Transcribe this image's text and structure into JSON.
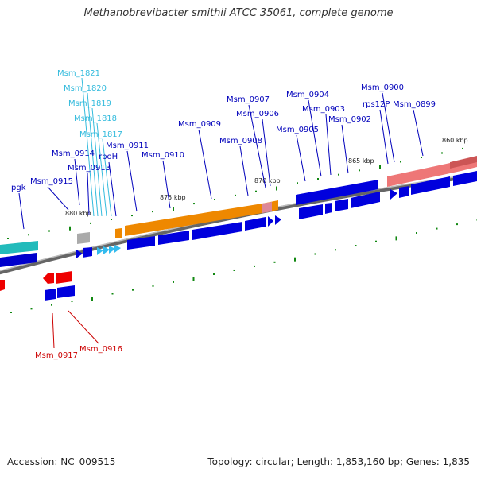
{
  "title": "Methanobrevibacter smithii ATCC 35061, complete genome",
  "accession": "Accession: NC_009515",
  "topology": "Topology: circular; Length: 1,853,160 bp; Genes: 1,835",
  "colors": {
    "cds": "#0000dd",
    "rna_cyan": "#33ccee",
    "orange": "#ee8800",
    "pink": "#ee7777",
    "red": "#ee0000",
    "teal": "#22bbbb",
    "gray": "#aaaaaa",
    "backbone": "#777777",
    "tick": "#118811"
  },
  "scale_labels": [
    "880 kbp",
    "875 kbp",
    "870 kbp",
    "865 kbp",
    "860 kbp"
  ],
  "gene_labels": [
    {
      "text": "Msm_1821",
      "color": "cyan"
    },
    {
      "text": "Msm_1820",
      "color": "cyan"
    },
    {
      "text": "Msm_1819",
      "color": "cyan"
    },
    {
      "text": "Msm_1818",
      "color": "cyan"
    },
    {
      "text": "Msm_1817",
      "color": "cyan"
    },
    {
      "text": "Msm_0911",
      "color": "blue"
    },
    {
      "text": "Msm_0914",
      "color": "blue"
    },
    {
      "text": "rpoH",
      "color": "blue"
    },
    {
      "text": "Msm_0913",
      "color": "blue"
    },
    {
      "text": "Msm_0915",
      "color": "blue"
    },
    {
      "text": "pgk",
      "color": "blue"
    },
    {
      "text": "Msm_0910",
      "color": "blue"
    },
    {
      "text": "Msm_0909",
      "color": "blue"
    },
    {
      "text": "Msm_0908",
      "color": "blue"
    },
    {
      "text": "Msm_0907",
      "color": "blue"
    },
    {
      "text": "Msm_0906",
      "color": "blue"
    },
    {
      "text": "Msm_0905",
      "color": "blue"
    },
    {
      "text": "Msm_0904",
      "color": "blue"
    },
    {
      "text": "Msm_0903",
      "color": "blue"
    },
    {
      "text": "Msm_0902",
      "color": "blue"
    },
    {
      "text": "Msm_0900",
      "color": "blue"
    },
    {
      "text": "rps12P",
      "color": "blue"
    },
    {
      "text": "Msm_0899",
      "color": "blue"
    },
    {
      "text": "Msm_0917",
      "color": "red"
    },
    {
      "text": "Msm_0916",
      "color": "red"
    }
  ]
}
